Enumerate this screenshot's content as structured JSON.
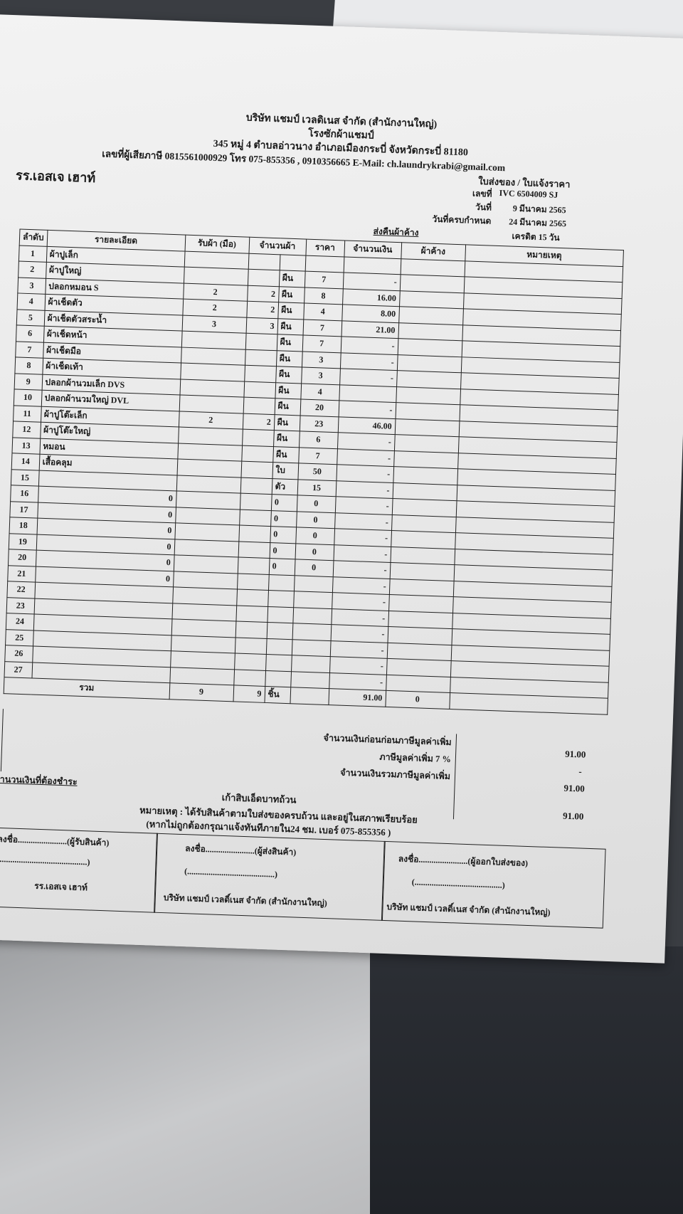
{
  "company": {
    "name": "บริษัท แชมป์ เวลดิเนส จำกัด (สำนักงานใหญ่)",
    "plant": "โรงซักผ้าแชมป์",
    "address": "345 หมู่ 4 ตำบลอ่าวนาง อำเภอเมืองกระบี่ จังหวัดกระบี่ 81180",
    "contact": "เลขที่ผู้เสียภาษี 0815561000929 โทร 075-855356 , 0910356665 E-Mail: ch.laundrykrabi@gmail.com"
  },
  "customer": "รร.เอสเจ เฮาท์",
  "doc_type": "ใบส่งของ / ใบแจ้งราคา",
  "meta": [
    {
      "label": "เลขที่",
      "value": "IVC 6504009 SJ"
    },
    {
      "label": "วันที่",
      "value": "9 มีนาคม 2565"
    },
    {
      "label": "วันที่ครบกำหนด",
      "value": "24 มีนาคม 2565"
    },
    {
      "label": "ส่งคืนผ้าค้าง",
      "value": "เครดิต 15 วัน"
    }
  ],
  "headers": {
    "no": "ลำดับ",
    "detail": "รายละเอียด",
    "received": "รับผ้า (มือ)",
    "qty": "จำนวนผ้า",
    "price": "ราคา",
    "amount": "จำนวนเงิน",
    "outstanding": "ผ้าค้าง",
    "remark": "หมายเหตุ"
  },
  "rows": [
    {
      "no": "1",
      "detail": "ผ้าปูเล็ก",
      "zero": "",
      "received": "",
      "qty": "",
      "unit": "",
      "price": "",
      "amount": ""
    },
    {
      "no": "2",
      "detail": "ผ้าปูใหญ่",
      "zero": "",
      "received": "",
      "qty": "",
      "unit": "ผืน",
      "price": "7",
      "amount": "-"
    },
    {
      "no": "3",
      "detail": "ปลอกหมอน S",
      "zero": "",
      "received": "2",
      "qty": "2",
      "unit": "ผืน",
      "price": "8",
      "amount": "16.00"
    },
    {
      "no": "4",
      "detail": "ผ้าเช็ดตัว",
      "zero": "",
      "received": "2",
      "qty": "2",
      "unit": "ผืน",
      "price": "4",
      "amount": "8.00"
    },
    {
      "no": "5",
      "detail": "ผ้าเช็ดตัวสระน้ำ",
      "zero": "",
      "received": "3",
      "qty": "3",
      "unit": "ผืน",
      "price": "7",
      "amount": "21.00"
    },
    {
      "no": "6",
      "detail": "ผ้าเช็ดหน้า",
      "zero": "",
      "received": "",
      "qty": "",
      "unit": "ผืน",
      "price": "7",
      "amount": "-"
    },
    {
      "no": "7",
      "detail": "ผ้าเช็ดมือ",
      "zero": "",
      "received": "",
      "qty": "",
      "unit": "ผืน",
      "price": "3",
      "amount": "-"
    },
    {
      "no": "8",
      "detail": "ผ้าเช็ดเท้า",
      "zero": "",
      "received": "",
      "qty": "",
      "unit": "ผืน",
      "price": "3",
      "amount": "-"
    },
    {
      "no": "9",
      "detail": "ปลอกผ้านวมเล็ก DVS",
      "zero": "",
      "received": "",
      "qty": "",
      "unit": "ผืน",
      "price": "4",
      "amount": ""
    },
    {
      "no": "10",
      "detail": "ปลอกผ้านวมใหญ่ DVL",
      "zero": "",
      "received": "",
      "qty": "",
      "unit": "ผืน",
      "price": "20",
      "amount": "-"
    },
    {
      "no": "11",
      "detail": "ผ้าปูโต๊ะเล็ก",
      "zero": "",
      "received": "2",
      "qty": "2",
      "unit": "ผืน",
      "price": "23",
      "amount": "46.00"
    },
    {
      "no": "12",
      "detail": "ผ้าปูโต๊ะใหญ่",
      "zero": "",
      "received": "",
      "qty": "",
      "unit": "ผืน",
      "price": "6",
      "amount": "-"
    },
    {
      "no": "13",
      "detail": "หมอน",
      "zero": "",
      "received": "",
      "qty": "",
      "unit": "ผืน",
      "price": "7",
      "amount": "-"
    },
    {
      "no": "14",
      "detail": "เสื้อคลุม",
      "zero": "",
      "received": "",
      "qty": "",
      "unit": "ใบ",
      "price": "50",
      "amount": "-"
    },
    {
      "no": "15",
      "detail": "",
      "zero": "",
      "received": "",
      "qty": "",
      "unit": "ตัว",
      "price": "15",
      "amount": "-"
    },
    {
      "no": "16",
      "detail": "",
      "zero": "0",
      "received": "",
      "qty": "",
      "unit": "0",
      "price": "0",
      "amount": "-"
    },
    {
      "no": "17",
      "detail": "",
      "zero": "0",
      "received": "",
      "qty": "",
      "unit": "0",
      "price": "0",
      "amount": "-"
    },
    {
      "no": "18",
      "detail": "",
      "zero": "0",
      "received": "",
      "qty": "",
      "unit": "0",
      "price": "0",
      "amount": "-"
    },
    {
      "no": "19",
      "detail": "",
      "zero": "0",
      "received": "",
      "qty": "",
      "unit": "0",
      "price": "0",
      "amount": "-"
    },
    {
      "no": "20",
      "detail": "",
      "zero": "0",
      "received": "",
      "qty": "",
      "unit": "0",
      "price": "0",
      "amount": "-"
    },
    {
      "no": "21",
      "detail": "",
      "zero": "0",
      "received": "",
      "qty": "",
      "unit": "",
      "price": "",
      "amount": "-"
    },
    {
      "no": "22",
      "detail": "",
      "zero": "",
      "received": "",
      "qty": "",
      "unit": "",
      "price": "",
      "amount": "-"
    },
    {
      "no": "23",
      "detail": "",
      "zero": "",
      "received": "",
      "qty": "",
      "unit": "",
      "price": "",
      "amount": "-"
    },
    {
      "no": "24",
      "detail": "",
      "zero": "",
      "received": "",
      "qty": "",
      "unit": "",
      "price": "",
      "amount": "-"
    },
    {
      "no": "25",
      "detail": "",
      "zero": "",
      "received": "",
      "qty": "",
      "unit": "",
      "price": "",
      "amount": "-"
    },
    {
      "no": "26",
      "detail": "",
      "zero": "",
      "received": "",
      "qty": "",
      "unit": "",
      "price": "",
      "amount": "-"
    },
    {
      "no": "27",
      "detail": "",
      "zero": "",
      "received": "",
      "qty": "",
      "unit": "",
      "price": "",
      "amount": "-"
    }
  ],
  "total_row": {
    "label": "รวม",
    "received": "9",
    "qty": "9",
    "unit": "ชิ้น",
    "amount": "91.00",
    "outstanding": "0"
  },
  "summary": [
    {
      "label": "จำนวนเงินก่อนก่อนภาษีมูลค่าเพิ่ม",
      "value": "91.00"
    },
    {
      "label": "ภาษีมูลค่าเพิ่ม 7 %",
      "value": "-"
    },
    {
      "label": "จำนวนเงินรวมภาษีมูลค่าเพิ่ม",
      "value": "91.00"
    }
  ],
  "payable": {
    "label": "จำนวนเงินที่ต้องชำระ",
    "words": "เก้าสิบเอ็ดบาทถ้วน",
    "value": "91.00"
  },
  "note": "หมายเหตุ : ได้รับสินค้าตามใบส่งของครบถ้วน และอยู่ในสภาพเรียบร้อย",
  "note2": "(หากไม่ถูกต้องกรุณาแจ้งทันทีภายใน24 ชม. เบอร์ 075-855356 )",
  "signatures": [
    {
      "line": "ลงชื่อ.......................(ผู้รับสินค้า)",
      "paren": "(.........................................)",
      "org": "รร.เอสเจ เฮาท์"
    },
    {
      "line": "ลงชื่อ.......................(ผู้ส่งสินค้า)",
      "paren": "(.........................................)",
      "org": "บริษัท แชมป์ เวลดิ์เนส จำกัด (สำนักงานใหญ่)"
    },
    {
      "line": "ลงชื่อ.......................(ผู้ออกใบส่งของ)",
      "paren": "(.........................................)",
      "org": "บริษัท แชมป์ เวลดิ์เนส จำกัด (สำนักงานใหญ่)"
    }
  ]
}
